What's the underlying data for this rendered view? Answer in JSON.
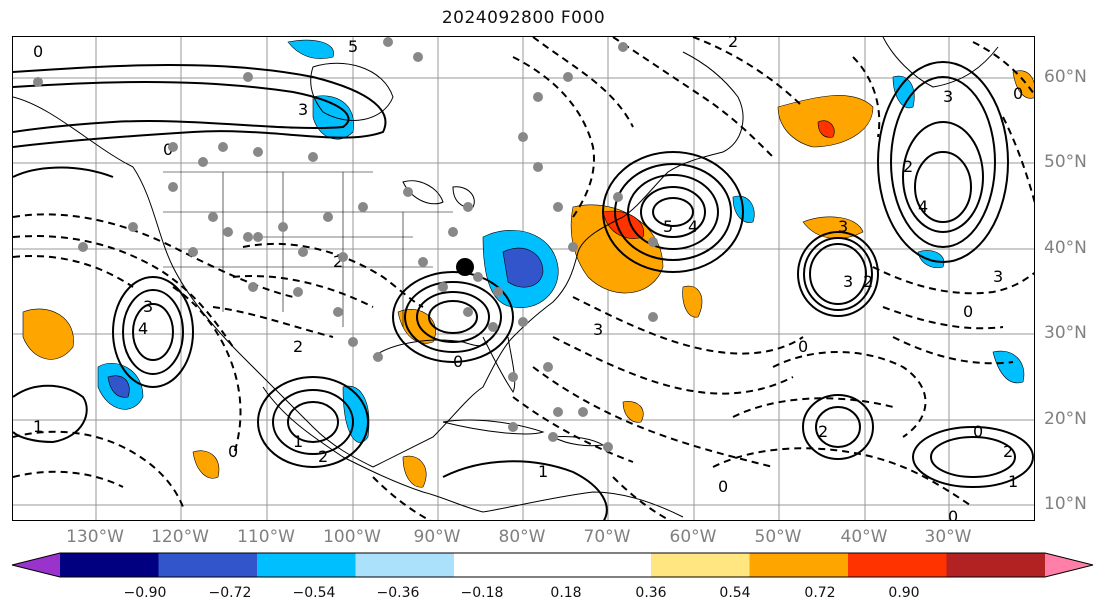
{
  "title": "2024092800 F000",
  "lat_labels": [
    "60°N",
    "50°N",
    "40°N",
    "30°N",
    "20°N",
    "10°N"
  ],
  "lon_labels": [
    "130°W",
    "120°W",
    "110°W",
    "100°W",
    "90°W",
    "80°W",
    "70°W",
    "60°W",
    "50°W",
    "40°W",
    "30°W"
  ],
  "colorbar": {
    "colors": [
      "#9933cc",
      "#000080",
      "#3355cc",
      "#00bfff",
      "#abe1fa",
      "#ffffff",
      "#ffffff",
      "#ffe680",
      "#ffa500",
      "#ff3300",
      "#b22222",
      "#ff7fa8"
    ],
    "labels": [
      "−0.90",
      "−0.72",
      "−0.54",
      "−0.36",
      "−0.18",
      "0.18",
      "0.36",
      "0.54",
      "0.72",
      "0.90"
    ]
  }
}
